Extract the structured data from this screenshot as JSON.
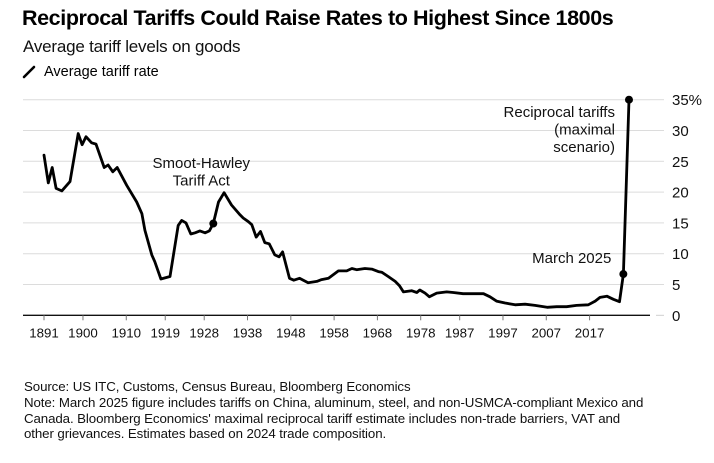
{
  "header": {
    "title": "Reciprocal Tariffs Could Raise Rates to Highest Since 1800s",
    "subtitle": "Average tariff levels on goods",
    "legend_label": "Average tariff rate",
    "legend_icon": "line-swatch-icon"
  },
  "footer": {
    "source": "Source: US ITC, Customs, Census Bureau, Bloomberg Economics",
    "note_lines": [
      "Note: March 2025 figure includes tariffs on China, aluminum, steel, and non-USMCA-compliant Mexico and",
      "Canada. Bloomberg Economics' maximal reciprocal tariff estimate includes non-trade barriers, VAT and",
      "other grievances. Estimates based on 2024 trade composition."
    ]
  },
  "chart_data": {
    "type": "line",
    "title": "Reciprocal Tariffs Could Raise Rates to Highest Since 1800s",
    "subtitle": "Average tariff levels on goods",
    "xlabel": "",
    "ylabel": "",
    "xlim": [
      1886,
      2031
    ],
    "ylim": [
      0,
      35
    ],
    "y_ticks": [
      0,
      5,
      10,
      15,
      20,
      25,
      30,
      35
    ],
    "y_tick_labels": [
      "0",
      "5",
      "10",
      "15",
      "20",
      "25",
      "30",
      "35%"
    ],
    "y_axis_side": "right",
    "x_ticks": [
      1891,
      1900,
      1910,
      1919,
      1928,
      1938,
      1948,
      1958,
      1968,
      1978,
      1987,
      1997,
      2007,
      2017
    ],
    "x_tick_labels": [
      "1891",
      "1900",
      "1910",
      "1919",
      "1928",
      "1938",
      "1948",
      "1958",
      "1968",
      "1978",
      "1987",
      "1997",
      "2007",
      "2017"
    ],
    "grid": "horizontal",
    "legend": {
      "position": "top-left",
      "entries": [
        "Average tariff rate"
      ]
    },
    "series": [
      {
        "name": "Average tariff rate",
        "color": "#000000",
        "x": [
          1891,
          1892,
          1892.9,
          1893.8,
          1895.1,
          1897,
          1898.9,
          1899.8,
          1900.7,
          1902,
          1903,
          1904.9,
          1905.8,
          1906.9,
          1907.9,
          1910.1,
          1912.4,
          1913.6,
          1914.3,
          1915.9,
          1916.6,
          1918,
          1920.1,
          1922,
          1922.8,
          1923.8,
          1924.9,
          1925.9,
          1927,
          1928.2,
          1929.2,
          1930.1,
          1931.3,
          1932.6,
          1934.3,
          1936.3,
          1937,
          1938.2,
          1939,
          1940,
          1941,
          1942,
          1943,
          1944.3,
          1945.3,
          1946.1,
          1947.7,
          1948.7,
          1950,
          1952,
          1954,
          1955.1,
          1956.7,
          1959,
          1960.9,
          1962.1,
          1963.2,
          1965.1,
          1966.7,
          1968.2,
          1969,
          1970.5,
          1972.1,
          1973.1,
          1974,
          1975.9,
          1977.1,
          1977.8,
          1979,
          1980,
          1981.7,
          1984,
          1985.5,
          1987.8,
          1990.1,
          1992.5,
          1994,
          1995.5,
          1997.5,
          1999.8,
          2002.1,
          2004.4,
          2007.2,
          2009.4,
          2011.7,
          2014,
          2016.7,
          2018.3,
          2019.4,
          2021,
          2022.5,
          2023.9,
          2024.8,
          2026.1
        ],
        "y": [
          26,
          21.5,
          24,
          20.6,
          20.2,
          21.7,
          29.5,
          27.7,
          29,
          28,
          27.8,
          24,
          24.4,
          23.3,
          24,
          21.1,
          18.4,
          16.5,
          13.8,
          9.8,
          8.7,
          5.9,
          6.3,
          14.6,
          15.4,
          15,
          13.2,
          13.4,
          13.7,
          13.4,
          13.7,
          14.9,
          18.4,
          19.9,
          17.9,
          16.3,
          15.8,
          15.2,
          14.7,
          12.7,
          13.6,
          11.8,
          11.6,
          9.8,
          9.5,
          10.3,
          6,
          5.7,
          6,
          5.3,
          5.5,
          5.8,
          6,
          7.2,
          7.2,
          7.6,
          7.4,
          7.6,
          7.5,
          7.1,
          7,
          6.3,
          5.5,
          4.8,
          3.8,
          4,
          3.7,
          4.1,
          3.6,
          3,
          3.6,
          3.8,
          3.7,
          3.5,
          3.5,
          3.5,
          3,
          2.3,
          2,
          1.7,
          1.8,
          1.6,
          1.3,
          1.4,
          1.4,
          1.6,
          1.7,
          2.3,
          2.9,
          3.1,
          2.6,
          2.2,
          6.7,
          35
        ]
      }
    ],
    "annotations": [
      {
        "label": "Smoot-Hawley Tariff Act",
        "lines": [
          "Smoot-Hawley",
          "Tariff Act"
        ],
        "x": 1930.1,
        "y": 14.9,
        "marker": "dot"
      },
      {
        "label": "March 2025",
        "lines": [
          "March 2025"
        ],
        "x": 2024.8,
        "y": 6.7,
        "marker": "dot"
      },
      {
        "label": "Reciprocal tariffs (maximal scenario)",
        "lines": [
          "Reciprocal tariffs",
          "(maximal",
          "scenario)"
        ],
        "x": 2026.1,
        "y": 35,
        "marker": "dot"
      }
    ]
  }
}
